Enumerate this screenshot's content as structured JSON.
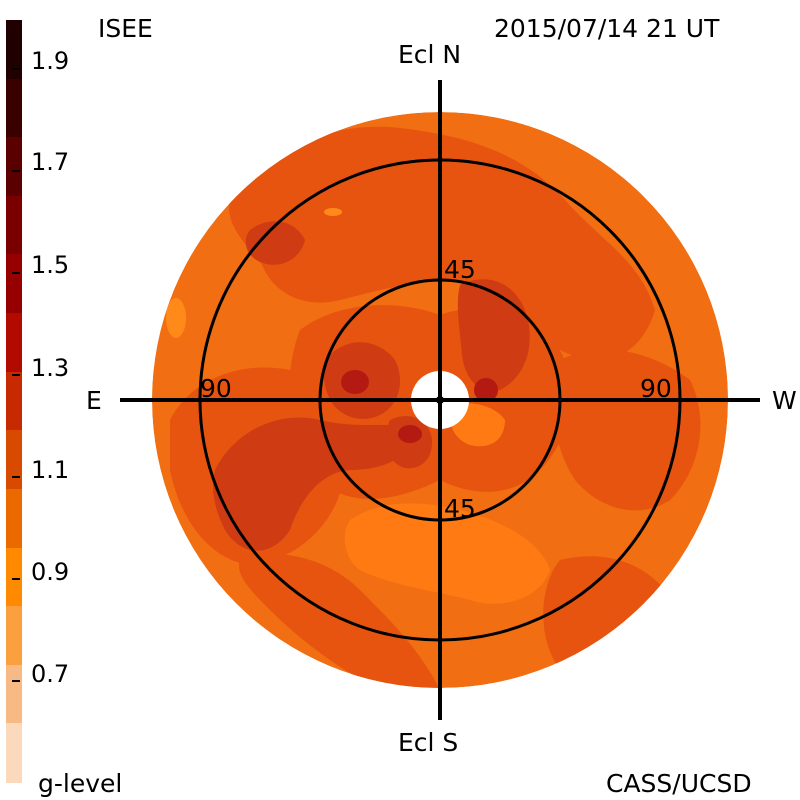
{
  "header": {
    "source": "ISEE",
    "datetime": "2015/07/14 21 UT"
  },
  "footer": {
    "scale_name": "g-level",
    "credit": "CASS/UCSD"
  },
  "axes": {
    "north": "Ecl N",
    "south": "Ecl S",
    "east": "E",
    "west": "W"
  },
  "rings": {
    "inner_top": "45",
    "inner_bottom": "45",
    "outer_left": "90",
    "outer_right": "90"
  },
  "colorbar": {
    "labels": [
      "1.9",
      "1.7",
      "1.5",
      "1.3",
      "1.1",
      "0.9",
      "0.7"
    ],
    "colors": [
      "#200000",
      "#3a0000",
      "#5a0000",
      "#7a0000",
      "#970000",
      "#b30a00",
      "#c72a00",
      "#d84a00",
      "#ea6a00",
      "#ff8a00",
      "#fba03e",
      "#f7ba84",
      "#fbd9bc"
    ]
  },
  "palette": {
    "disk_base": "#f26e12",
    "mid": "#e65410",
    "dark": "#cf3b12",
    "darkest": "#b51a12",
    "light": "#ff8a1a"
  }
}
